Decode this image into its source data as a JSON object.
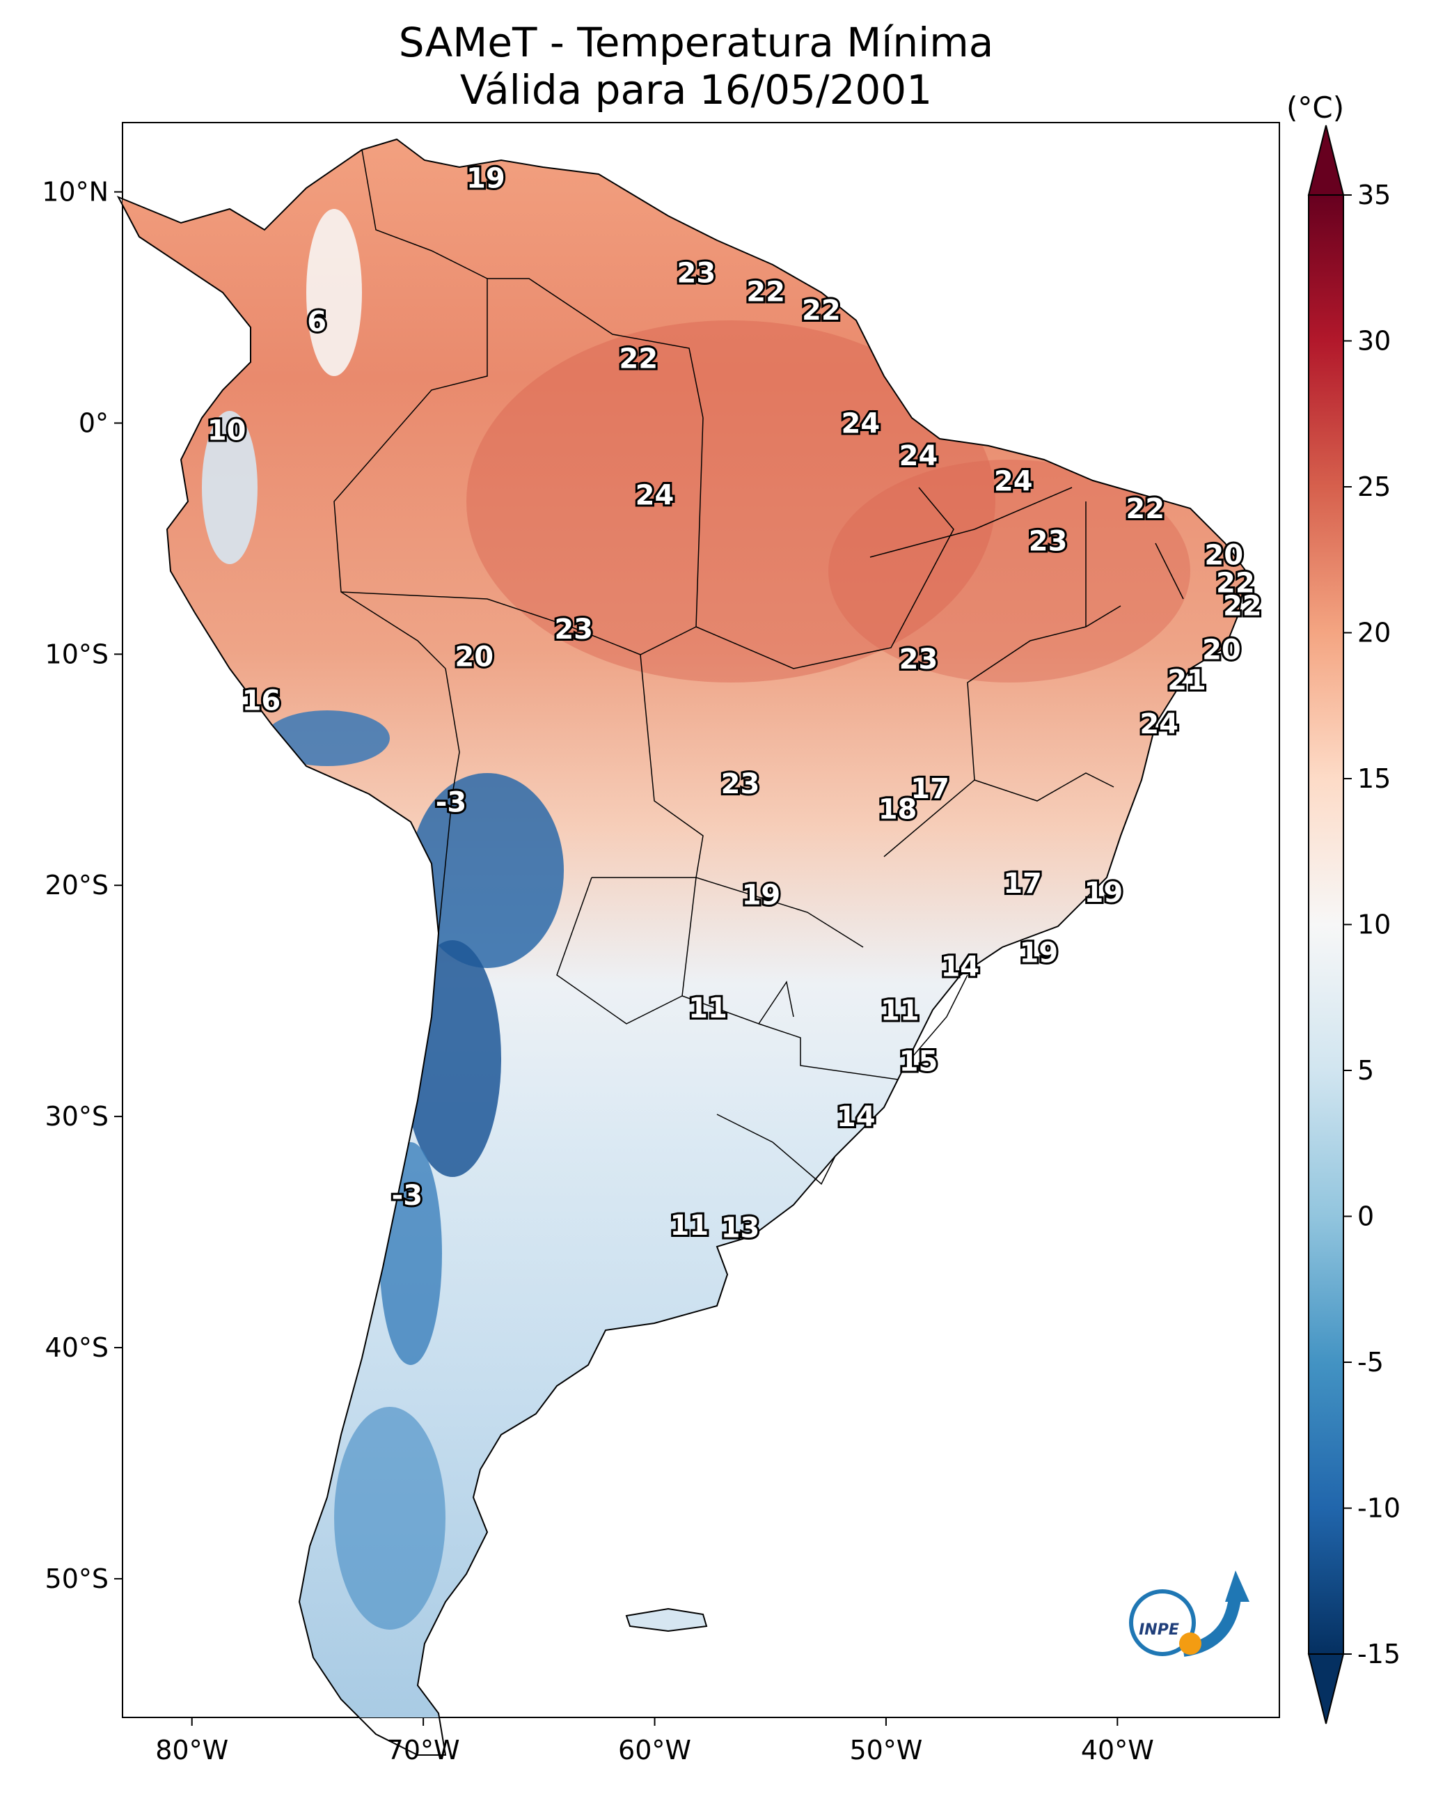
{
  "title": {
    "line1": "SAMeT - Temperatura Mínima",
    "line2": "Válida para 16/05/2001"
  },
  "colorbar": {
    "unit": "(°C)",
    "ticks": [
      "35",
      "30",
      "25",
      "20",
      "15",
      "10",
      "5",
      "0",
      "-5",
      "-10",
      "-15"
    ],
    "min": -15,
    "max": 35,
    "colors": [
      "#053061",
      "#2166ac",
      "#4393c3",
      "#92c5de",
      "#d1e5f0",
      "#f7f7f7",
      "#fddbc7",
      "#f4a582",
      "#d6604d",
      "#b2182b",
      "#67001f"
    ]
  },
  "axes": {
    "lon_ticks": [
      "80°W",
      "70°W",
      "60°W",
      "50°W",
      "40°W"
    ],
    "lat_ticks": [
      "10°N",
      "0°",
      "10°S",
      "20°S",
      "30°S",
      "40°S",
      "50°S"
    ]
  },
  "map_labels": [
    {
      "text": "19",
      "lon": -67.3,
      "lat": 10.6
    },
    {
      "text": "6",
      "lon": -74.6,
      "lat": 4.4
    },
    {
      "text": "23",
      "lon": -58.2,
      "lat": 6.5
    },
    {
      "text": "22",
      "lon": -55.2,
      "lat": 5.7
    },
    {
      "text": "22",
      "lon": -52.8,
      "lat": 4.9
    },
    {
      "text": "22",
      "lon": -60.7,
      "lat": 2.8
    },
    {
      "text": "10",
      "lon": -78.5,
      "lat": -0.3
    },
    {
      "text": "24",
      "lon": -51.1,
      "lat": 0.0
    },
    {
      "text": "24",
      "lon": -48.6,
      "lat": -1.4
    },
    {
      "text": "24",
      "lon": -44.5,
      "lat": -2.5
    },
    {
      "text": "24",
      "lon": -60.0,
      "lat": -3.1
    },
    {
      "text": "22",
      "lon": -38.8,
      "lat": -3.7
    },
    {
      "text": "23",
      "lon": -43.0,
      "lat": -5.1
    },
    {
      "text": "20",
      "lon": -35.4,
      "lat": -5.7
    },
    {
      "text": "22",
      "lon": -34.9,
      "lat": -6.9
    },
    {
      "text": "22",
      "lon": -34.6,
      "lat": -7.9
    },
    {
      "text": "23",
      "lon": -63.5,
      "lat": -8.9
    },
    {
      "text": "20",
      "lon": -67.8,
      "lat": -10.1
    },
    {
      "text": "23",
      "lon": -48.6,
      "lat": -10.2
    },
    {
      "text": "20",
      "lon": -35.5,
      "lat": -9.8
    },
    {
      "text": "21",
      "lon": -37.0,
      "lat": -11.1
    },
    {
      "text": "16",
      "lon": -77.0,
      "lat": -12.0
    },
    {
      "text": "24",
      "lon": -38.2,
      "lat": -13.0
    },
    {
      "text": "23",
      "lon": -56.3,
      "lat": -15.6
    },
    {
      "text": "17",
      "lon": -48.1,
      "lat": -15.8
    },
    {
      "text": "18",
      "lon": -49.5,
      "lat": -16.7
    },
    {
      "text": "-3",
      "lon": -68.8,
      "lat": -16.4
    },
    {
      "text": "17",
      "lon": -44.1,
      "lat": -19.9
    },
    {
      "text": "19",
      "lon": -40.6,
      "lat": -20.3
    },
    {
      "text": "19",
      "lon": -55.4,
      "lat": -20.4
    },
    {
      "text": "14",
      "lon": -46.8,
      "lat": -23.5
    },
    {
      "text": "19",
      "lon": -43.4,
      "lat": -22.9
    },
    {
      "text": "11",
      "lon": -57.7,
      "lat": -25.3
    },
    {
      "text": "11",
      "lon": -49.4,
      "lat": -25.4
    },
    {
      "text": "15",
      "lon": -48.6,
      "lat": -27.6
    },
    {
      "text": "14",
      "lon": -51.3,
      "lat": -30.0
    },
    {
      "text": "-3",
      "lon": -70.7,
      "lat": -33.4
    },
    {
      "text": "11",
      "lon": -58.5,
      "lat": -34.7
    },
    {
      "text": "13",
      "lon": -56.3,
      "lat": -34.8
    }
  ],
  "logo": {
    "text": "INPE"
  }
}
